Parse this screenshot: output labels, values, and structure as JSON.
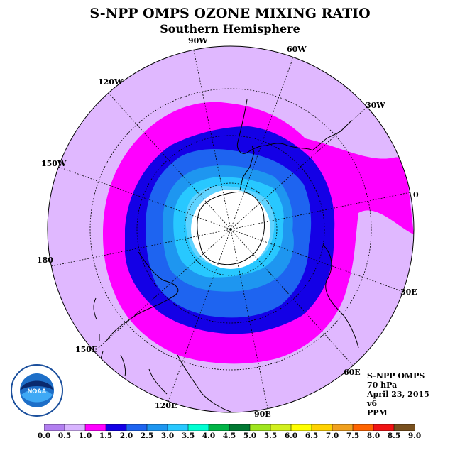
{
  "title": "S-NPP OMPS OZONE MIXING RATIO",
  "subtitle": "Southern Hemisphere",
  "longitude_labels": [
    {
      "key": "90W",
      "text": "90W"
    },
    {
      "key": "60W",
      "text": "60W"
    },
    {
      "key": "30W",
      "text": "30W"
    },
    {
      "key": "0",
      "text": "0"
    },
    {
      "key": "30E",
      "text": "30E"
    },
    {
      "key": "60E",
      "text": "60E"
    },
    {
      "key": "90E",
      "text": "90E"
    },
    {
      "key": "120E",
      "text": "120E"
    },
    {
      "key": "150E",
      "text": "150E"
    },
    {
      "key": "180",
      "text": "180"
    },
    {
      "key": "150W",
      "text": "150W"
    },
    {
      "key": "120W",
      "text": "120W"
    }
  ],
  "info": {
    "instrument": "S-NPP OMPS",
    "level": "70 hPa",
    "date": "April 23, 2015",
    "version": "v6",
    "units": "PPM"
  },
  "logo": {
    "text": "NOAA",
    "ring_text": "NATIONAL OCEANIC AND ATMOSPHERIC ADMINISTRATION · U.S. DEPARTMENT OF COMMERCE"
  },
  "colors": {
    "0.5": "#d9aaff",
    "1.0": "#e0b8ff",
    "1.5": "#ff00ff",
    "2.0": "#1400e6",
    "2.5": "#1e64f0",
    "3.0": "#1e96f0",
    "3.5": "#28c8ff",
    "4.0": "#00ffd2",
    "polar_night": "#ffffff"
  },
  "colorbar": {
    "ticks": [
      "0.0",
      "0.5",
      "1.0",
      "1.5",
      "2.0",
      "2.5",
      "3.0",
      "3.5",
      "4.0",
      "4.5",
      "5.0",
      "5.5",
      "6.0",
      "6.5",
      "7.0",
      "7.5",
      "8.0",
      "8.5",
      "9.0"
    ],
    "colors": [
      "#b27ff0",
      "#d8b4ff",
      "#ff00ff",
      "#1400e6",
      "#1e64f0",
      "#1e96f0",
      "#28c8ff",
      "#00ffd2",
      "#00b446",
      "#007832",
      "#a0e61e",
      "#d2f01e",
      "#ffff00",
      "#ffd200",
      "#f0a01e",
      "#ff6400",
      "#f01414",
      "#78501e"
    ]
  }
}
